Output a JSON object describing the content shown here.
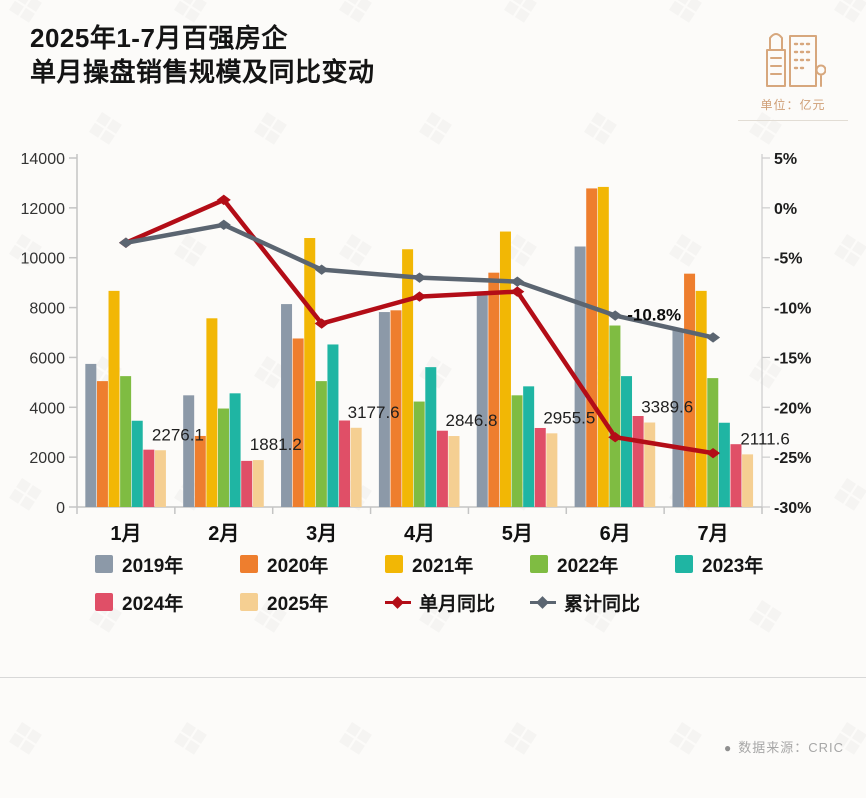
{
  "header": {
    "title_line1": "2025年1-7月百强房企",
    "title_line2": "单月操盘销售规模及同比变动",
    "unit_label": "单位：亿元"
  },
  "footer": {
    "bullet": "●",
    "source": "数据来源：CRIC"
  },
  "icons": {
    "buildings": "buildings-icon",
    "source_bullet": "dot"
  },
  "colors": {
    "accent_tan": "#d7a77d",
    "axis_line": "#c4c4c4",
    "axis_text": "#333333",
    "title_text": "#141414"
  },
  "chart_data": {
    "type": "bar+line",
    "title": "2025年1-7月百强房企单月操盘销售规模及同比变动",
    "categories": [
      "1月",
      "2月",
      "3月",
      "4月",
      "5月",
      "6月",
      "7月"
    ],
    "bar_series": [
      {
        "name": "2019年",
        "color": "#8c99a8",
        "values": [
          5740,
          4480,
          8140,
          7820,
          8550,
          10450,
          7120
        ]
      },
      {
        "name": "2020年",
        "color": "#ee7e2e",
        "values": [
          5050,
          2850,
          6760,
          7890,
          9400,
          12780,
          9360
        ]
      },
      {
        "name": "2021年",
        "color": "#f2b705",
        "values": [
          8670,
          7570,
          10790,
          10340,
          11050,
          12840,
          8670
        ]
      },
      {
        "name": "2022年",
        "color": "#7fbc42",
        "values": [
          5250,
          3950,
          5050,
          4230,
          4480,
          7280,
          5170
        ]
      },
      {
        "name": "2023年",
        "color": "#1fb5a3",
        "values": [
          3460,
          4560,
          6520,
          5610,
          4840,
          5250,
          3380
        ]
      },
      {
        "name": "2024年",
        "color": "#e04f67",
        "values": [
          2300,
          1850,
          3470,
          3060,
          3170,
          3650,
          2520
        ]
      },
      {
        "name": "2025年",
        "color": "#f5cf92",
        "values": [
          2276.1,
          1881.2,
          3177.6,
          2846.8,
          2955.5,
          3389.6,
          2111.6
        ]
      }
    ],
    "bar_value_labels": [
      "2276.1",
      "1881.2",
      "3177.6",
      "2846.8",
      "2955.5",
      "3389.6",
      "2111.6"
    ],
    "line_series": [
      {
        "name": "单月同比",
        "color": "#b30d17",
        "values": [
          -3.5,
          0.8,
          -11.6,
          -8.9,
          -8.4,
          -23.0,
          -24.6
        ]
      },
      {
        "name": "累计同比",
        "color": "#5b6571",
        "values": [
          -3.5,
          -1.7,
          -6.2,
          -7.0,
          -7.4,
          -10.8,
          -13.0
        ]
      }
    ],
    "line_annotation": {
      "text": "-10.8%",
      "series": "累计同比",
      "month_index": 5
    },
    "left_axis": {
      "min": 0,
      "max": 14000,
      "step": 2000,
      "ticks": [
        "0",
        "2000",
        "4000",
        "6000",
        "8000",
        "10000",
        "12000",
        "14000"
      ]
    },
    "right_axis": {
      "min": -30,
      "max": 5,
      "step": 5,
      "ticks": [
        "5%",
        "0%",
        "-5%",
        "-10%",
        "-15%",
        "-20%",
        "-25%",
        "-30%"
      ]
    },
    "grid": false,
    "legend_position": "bottom"
  },
  "legend": {
    "row1": [
      "2019年",
      "2020年",
      "2021年",
      "2022年",
      "2023年"
    ],
    "row2_bars": [
      "2024年",
      "2025年"
    ],
    "row2_lines": [
      "单月同比",
      "累计同比"
    ]
  }
}
